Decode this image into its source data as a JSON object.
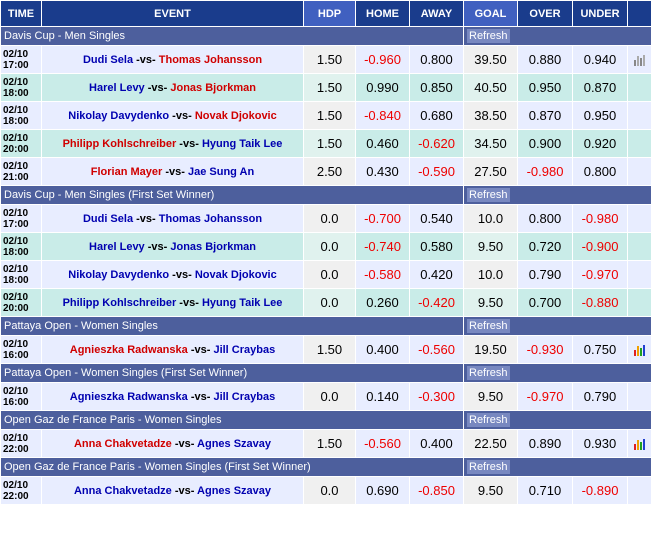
{
  "headers": [
    "TIME",
    "EVENT",
    "HDP",
    "HOME",
    "AWAY",
    "GOAL",
    "OVER",
    "UNDER"
  ],
  "refresh_label": "Refresh",
  "sections": [
    {
      "title": "Davis Cup - Men Singles",
      "matches": [
        {
          "date": "02/10",
          "time": "17:00",
          "home": "Dudi Sela",
          "away": "Thomas Johansson",
          "fav": "away",
          "hdp": "1.50",
          "home_odds": "-0.960",
          "away_odds": "0.800",
          "goal": "39.50",
          "over": "0.880",
          "under": "0.940",
          "chart": "grey"
        },
        {
          "date": "02/10",
          "time": "18:00",
          "home": "Harel Levy",
          "away": "Jonas Bjorkman",
          "fav": "away",
          "hdp": "1.50",
          "home_odds": "0.990",
          "away_odds": "0.850",
          "goal": "40.50",
          "over": "0.950",
          "under": "0.870",
          "chart": "none"
        },
        {
          "date": "02/10",
          "time": "18:00",
          "home": "Nikolay Davydenko",
          "away": "Novak Djokovic",
          "fav": "away",
          "hdp": "1.50",
          "home_odds": "-0.840",
          "away_odds": "0.680",
          "goal": "38.50",
          "over": "0.870",
          "under": "0.950",
          "chart": "none"
        },
        {
          "date": "02/10",
          "time": "20:00",
          "home": "Philipp Kohlschreiber",
          "away": "Hyung Taik Lee",
          "fav": "home",
          "hdp": "1.50",
          "home_odds": "0.460",
          "away_odds": "-0.620",
          "goal": "34.50",
          "over": "0.900",
          "under": "0.920",
          "chart": "none"
        },
        {
          "date": "02/10",
          "time": "21:00",
          "home": "Florian Mayer",
          "away": "Jae Sung An",
          "fav": "home",
          "hdp": "2.50",
          "home_odds": "0.430",
          "away_odds": "-0.590",
          "goal": "27.50",
          "over": "-0.980",
          "under": "0.800",
          "chart": "none"
        }
      ]
    },
    {
      "title": "Davis Cup - Men Singles (First Set Winner)",
      "matches": [
        {
          "date": "02/10",
          "time": "17:00",
          "home": "Dudi Sela",
          "away": "Thomas Johansson",
          "fav": "none",
          "hdp": "0.0",
          "home_odds": "-0.700",
          "away_odds": "0.540",
          "goal": "10.0",
          "over": "0.800",
          "under": "-0.980",
          "chart": "none"
        },
        {
          "date": "02/10",
          "time": "18:00",
          "home": "Harel Levy",
          "away": "Jonas Bjorkman",
          "fav": "none",
          "hdp": "0.0",
          "home_odds": "-0.740",
          "away_odds": "0.580",
          "goal": "9.50",
          "over": "0.720",
          "under": "-0.900",
          "chart": "none"
        },
        {
          "date": "02/10",
          "time": "18:00",
          "home": "Nikolay Davydenko",
          "away": "Novak Djokovic",
          "fav": "none",
          "hdp": "0.0",
          "home_odds": "-0.580",
          "away_odds": "0.420",
          "goal": "10.0",
          "over": "0.790",
          "under": "-0.970",
          "chart": "none"
        },
        {
          "date": "02/10",
          "time": "20:00",
          "home": "Philipp Kohlschreiber",
          "away": "Hyung Taik Lee",
          "fav": "none",
          "hdp": "0.0",
          "home_odds": "0.260",
          "away_odds": "-0.420",
          "goal": "9.50",
          "over": "0.700",
          "under": "-0.880",
          "chart": "none"
        }
      ]
    },
    {
      "title": "Pattaya Open - Women Singles",
      "matches": [
        {
          "date": "02/10",
          "time": "16:00",
          "home": "Agnieszka Radwanska",
          "away": "Jill Craybas",
          "fav": "home",
          "hdp": "1.50",
          "home_odds": "0.400",
          "away_odds": "-0.560",
          "goal": "19.50",
          "over": "-0.930",
          "under": "0.750",
          "chart": "color"
        }
      ]
    },
    {
      "title": "Pattaya Open - Women Singles (First Set Winner)",
      "matches": [
        {
          "date": "02/10",
          "time": "16:00",
          "home": "Agnieszka Radwanska",
          "away": "Jill Craybas",
          "fav": "none",
          "hdp": "0.0",
          "home_odds": "0.140",
          "away_odds": "-0.300",
          "goal": "9.50",
          "over": "-0.970",
          "under": "0.790",
          "chart": "none"
        }
      ]
    },
    {
      "title": "Open Gaz de France Paris - Women Singles",
      "matches": [
        {
          "date": "02/10",
          "time": "22:00",
          "home": "Anna Chakvetadze",
          "away": "Agnes Szavay",
          "fav": "home",
          "hdp": "1.50",
          "home_odds": "-0.560",
          "away_odds": "0.400",
          "goal": "22.50",
          "over": "0.890",
          "under": "0.930",
          "chart": "color"
        }
      ]
    },
    {
      "title": "Open Gaz de France Paris - Women Singles (First Set Winner)",
      "matches": [
        {
          "date": "02/10",
          "time": "22:00",
          "home": "Anna Chakvetadze",
          "away": "Agnes Szavay",
          "fav": "none",
          "hdp": "0.0",
          "home_odds": "0.690",
          "away_odds": "-0.850",
          "goal": "9.50",
          "over": "0.710",
          "under": "-0.890",
          "chart": "none"
        }
      ]
    }
  ],
  "colors": {
    "header": "#1a3c8c",
    "league": "#4d5f9d",
    "fav": "#d00000",
    "dog": "#0000b0",
    "negative": "#ee0000"
  }
}
